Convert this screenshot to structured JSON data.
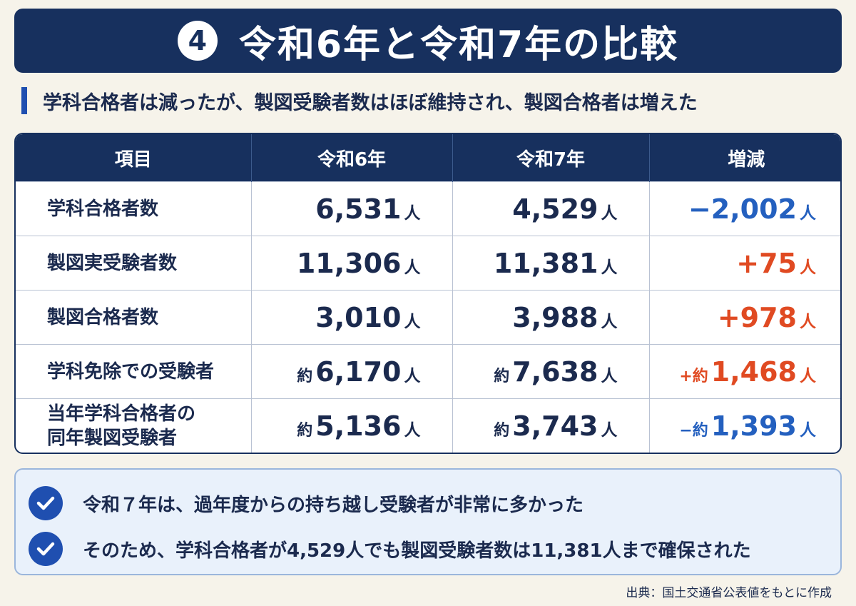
{
  "header": {
    "number": "4",
    "title": "令和6年と令和7年の比較"
  },
  "subtitle": "学科合格者は減ったが、製図受験者数はほぼ維持され、製図合格者は増えた",
  "table": {
    "columns": [
      "項目",
      "令和6年",
      "令和7年",
      "増減"
    ],
    "rows": [
      {
        "item": "学科合格者数",
        "r6": {
          "prefix": "",
          "value": "6,531",
          "unit": "人"
        },
        "r7": {
          "prefix": "",
          "value": "4,529",
          "unit": "人"
        },
        "diff": {
          "prefix": "−",
          "value": "2,002",
          "unit": "人"
        }
      },
      {
        "item": "製図実受験者数",
        "r6": {
          "prefix": "",
          "value": "11,306",
          "unit": "人"
        },
        "r7": {
          "prefix": "",
          "value": "11,381",
          "unit": "人"
        },
        "diff": {
          "prefix": "+",
          "value": "75",
          "unit": "人"
        }
      },
      {
        "item": "製図合格者数",
        "r6": {
          "prefix": "",
          "value": "3,010",
          "unit": "人"
        },
        "r7": {
          "prefix": "",
          "value": "3,988",
          "unit": "人"
        },
        "diff": {
          "prefix": "+",
          "value": "978",
          "unit": "人"
        }
      },
      {
        "item": "学科免除での受験者",
        "r6": {
          "prefix": "約",
          "value": "6,170",
          "unit": "人"
        },
        "r7": {
          "prefix": "約",
          "value": "7,638",
          "unit": "人"
        },
        "diff": {
          "prefix": "+約",
          "value": "1,468",
          "unit": "人"
        }
      },
      {
        "item_line1": "当年学科合格者の",
        "item_line2": "同年製図受験者",
        "r6": {
          "prefix": "約",
          "value": "5,136",
          "unit": "人"
        },
        "r7": {
          "prefix": "約",
          "value": "3,743",
          "unit": "人"
        },
        "diff": {
          "prefix": "−約",
          "value": "1,393",
          "unit": "人"
        }
      }
    ]
  },
  "notes": [
    "令和７年は、過年度からの持ち越し受験者が非常に多かった",
    "そのため、学科合格者が4,529人でも製図受験者数は11,381人まで確保された"
  ],
  "source": "出典：国土交通省公表値をもとに作成",
  "colors": {
    "navy": "#17305e",
    "negative": "#2460bf",
    "positive": "#e04a22",
    "background": "#f6f3ea"
  }
}
